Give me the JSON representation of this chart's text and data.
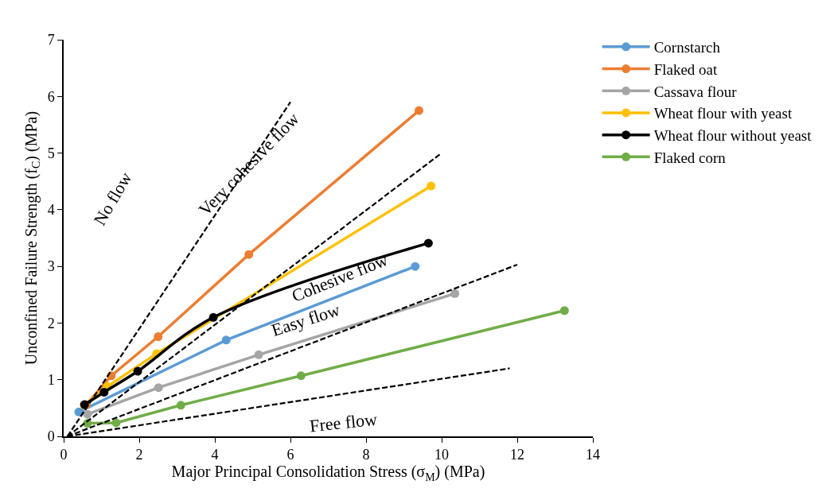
{
  "chart_data": {
    "type": "line",
    "xlabel": "Major Principal Consolidation Stress (σ$_{M}$) (MPa)",
    "ylabel": "Unconfined Failure Strength (f$_{C}$) (MPa)",
    "xlim": [
      0,
      14
    ],
    "xticks": [
      0,
      2,
      4,
      6,
      8,
      10,
      12,
      14
    ],
    "ylim": [
      0,
      7
    ],
    "yticks": [
      0,
      1,
      2,
      3,
      4,
      5,
      6,
      7
    ],
    "legend": "top right",
    "marker": "circle",
    "line_style": "solid",
    "series": [
      {
        "name": "Cornstarch",
        "color": "#5b9bd5",
        "x": [
          0.4,
          4.3,
          9.3
        ],
        "values": [
          0.43,
          1.7,
          3.0
        ]
      },
      {
        "name": "Flaked oat",
        "color": "#ed7d31",
        "x": [
          0.6,
          1.26,
          2.5,
          4.9,
          9.4
        ],
        "values": [
          0.56,
          1.07,
          1.76,
          3.21,
          5.75
        ]
      },
      {
        "name": "Cassava flour",
        "color": "#a5a5a5",
        "x": [
          0.63,
          2.51,
          5.16,
          10.35
        ],
        "values": [
          0.39,
          0.86,
          1.44,
          2.52
        ]
      },
      {
        "name": "Wheat flour with yeast",
        "color": "#ffc000",
        "x": [
          0.55,
          1.16,
          2.46,
          9.72
        ],
        "values": [
          0.55,
          0.88,
          1.46,
          4.42
        ]
      },
      {
        "name": "Wheat flour without yeast",
        "color": "#000000",
        "x": [
          0.55,
          1.07,
          1.96,
          3.96,
          9.65
        ],
        "values": [
          0.56,
          0.78,
          1.15,
          2.1,
          3.41
        ]
      },
      {
        "name": "Flaked corn",
        "color": "#70ad47",
        "x": [
          0.63,
          1.39,
          3.1,
          6.28,
          13.25
        ],
        "values": [
          0.23,
          0.24,
          0.55,
          1.07,
          2.22
        ]
      },
      {
        "color": "#000000",
        "line_style": "dashed",
        "marker": "none",
        "x": [
          0.1,
          6
        ],
        "values": [
          0,
          5.9
        ]
      },
      {
        "color": "#000000",
        "line_style": "dashed",
        "marker": "none",
        "x": [
          0.1,
          10
        ],
        "values": [
          0,
          5.0
        ]
      },
      {
        "color": "#000000",
        "line_style": "dashed",
        "marker": "none",
        "x": [
          0.1,
          12
        ],
        "values": [
          0,
          3.03
        ]
      },
      {
        "color": "#000000",
        "line_style": "dashed",
        "marker": "none",
        "x": [
          0.1,
          11.8
        ],
        "values": [
          0,
          1.2
        ]
      }
    ],
    "annotations": [
      "No flow",
      "Very cohesive flow",
      "Cohesive flow",
      "Easy flow",
      "Free flow"
    ]
  }
}
